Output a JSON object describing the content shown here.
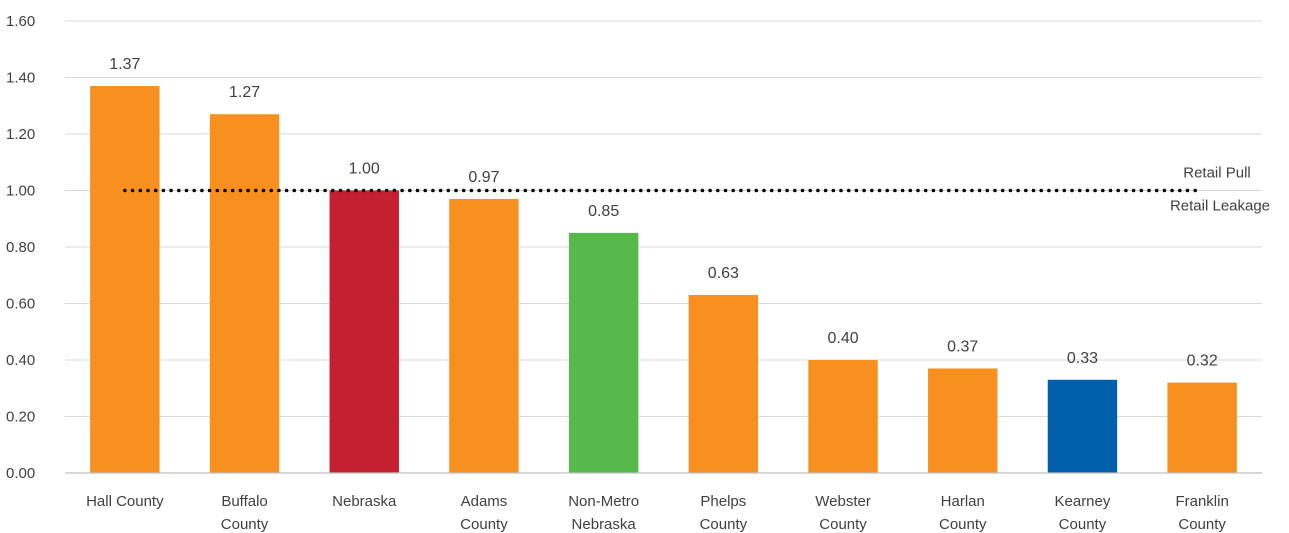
{
  "chart_data": {
    "type": "bar",
    "title": "",
    "xlabel": "",
    "ylabel": "",
    "ylim": [
      0,
      1.6
    ],
    "yticks": [
      "0.00",
      "0.20",
      "0.40",
      "0.60",
      "0.80",
      "1.00",
      "1.20",
      "1.40",
      "1.60"
    ],
    "grid": true,
    "categories": [
      [
        "Hall County"
      ],
      [
        "Buffalo",
        "County"
      ],
      [
        "Nebraska"
      ],
      [
        "Adams",
        "County"
      ],
      [
        "Non-Metro",
        "Nebraska"
      ],
      [
        "Phelps",
        "County"
      ],
      [
        "Webster",
        "County"
      ],
      [
        "Harlan",
        "County"
      ],
      [
        "Kearney",
        "County"
      ],
      [
        "Franklin",
        "County"
      ]
    ],
    "values": [
      1.37,
      1.27,
      1.0,
      0.97,
      0.85,
      0.63,
      0.4,
      0.37,
      0.33,
      0.32
    ],
    "data_labels": [
      "1.37",
      "1.27",
      "1.00",
      "0.97",
      "0.85",
      "0.63",
      "0.40",
      "0.37",
      "0.33",
      "0.32"
    ],
    "bar_colors": [
      "#f7901e",
      "#f7901e",
      "#c42032",
      "#f7901e",
      "#58b94b",
      "#f7901e",
      "#f7901e",
      "#f7901e",
      "#0060a9",
      "#f7901e"
    ],
    "reference_line": {
      "value": 1.0,
      "style": "dotted",
      "color": "#000000",
      "label_above": "Retail Pull",
      "label_below": "Retail Leakage"
    }
  }
}
